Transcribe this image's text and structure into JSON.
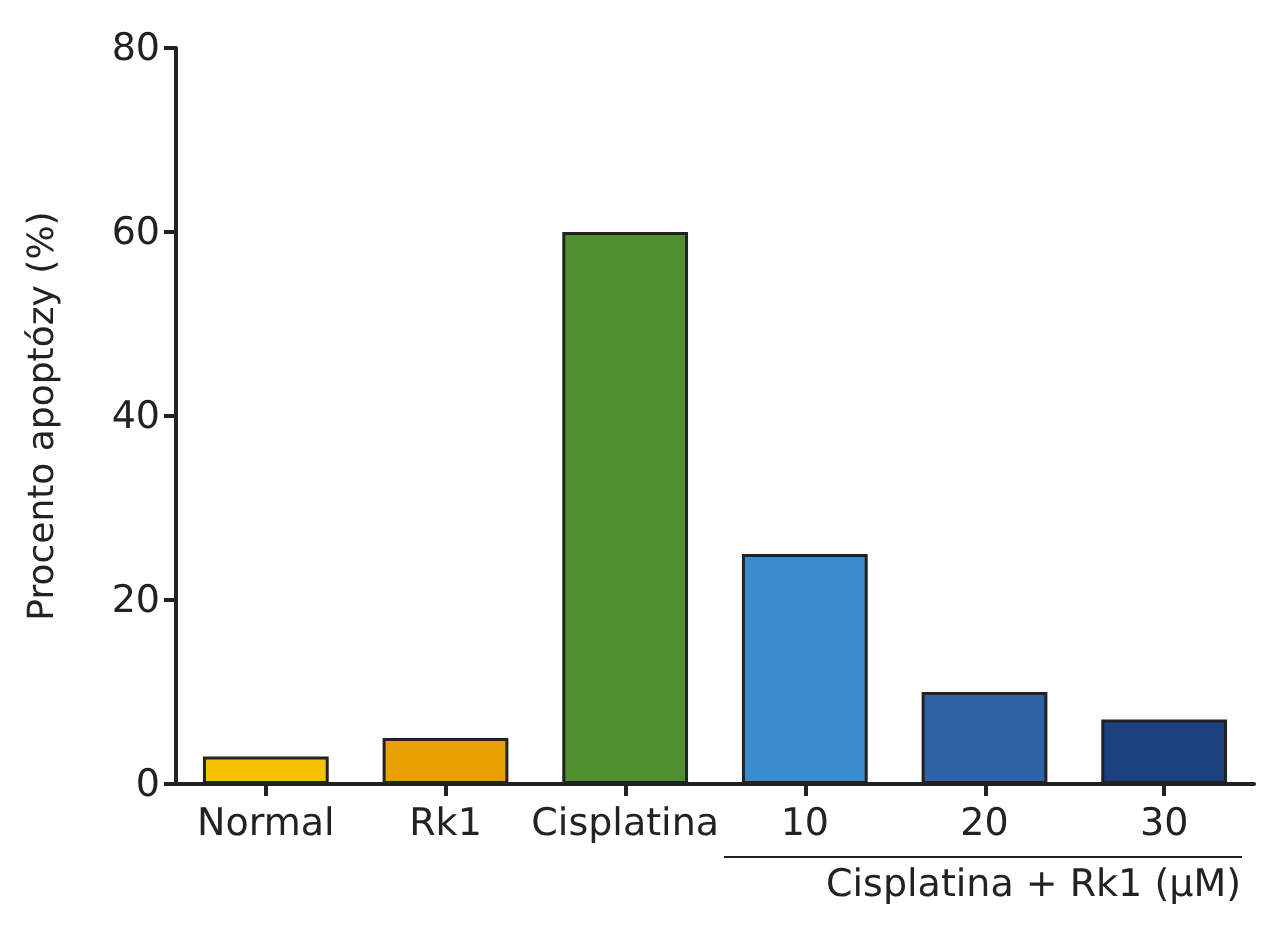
{
  "chart_data": {
    "type": "bar",
    "xlabel": "Cisplatina + Rk1 (µM)",
    "ylabel": "Procento apoptózy (%)",
    "categories": [
      "Normal",
      "Rk1",
      "Cisplatina",
      "10",
      "20",
      "30"
    ],
    "values": [
      3,
      5,
      60,
      25,
      10,
      7
    ],
    "colors": [
      "#f5c400",
      "#e8a000",
      "#4f8f2f",
      "#3a8ccc",
      "#2e63a8",
      "#1c3f7e"
    ],
    "ylim": [
      0,
      80
    ],
    "yticks": [
      0,
      20,
      40,
      60,
      80
    ],
    "grid": false
  }
}
